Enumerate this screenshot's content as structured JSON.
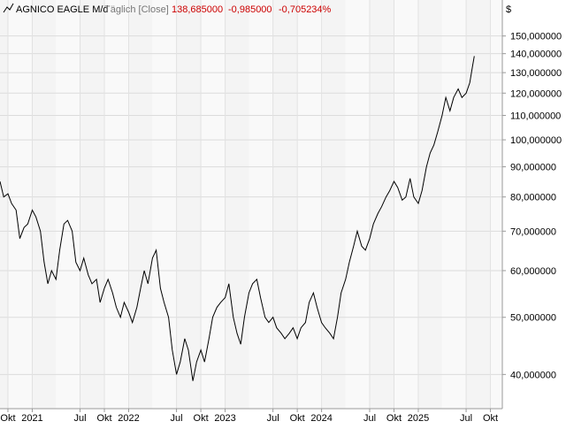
{
  "header": {
    "instrument": "AGNICO EAGLE M/d",
    "mode": "Täglich [Close]",
    "last": "138,685000",
    "change": "-0,985000",
    "change_pct": "-0,705234%",
    "currency": "$",
    "change_color": "#cc0000"
  },
  "chart_data": {
    "type": "line",
    "title": "",
    "xlabel": "",
    "ylabel": "",
    "y_scale": "log",
    "ylim": [
      35,
      160
    ],
    "xlim": [
      "2020-09-01",
      "2025-11-15"
    ],
    "grid": true,
    "y_ticks": [
      {
        "value": 40,
        "label": "40,000000"
      },
      {
        "value": 50,
        "label": "50,000000"
      },
      {
        "value": 60,
        "label": "60,000000"
      },
      {
        "value": 70,
        "label": "70,000000"
      },
      {
        "value": 80,
        "label": "80,000000"
      },
      {
        "value": 90,
        "label": "90,000000"
      },
      {
        "value": 100,
        "label": "100,000000"
      },
      {
        "value": 110,
        "label": "110,000000"
      },
      {
        "value": 120,
        "label": "120,000000"
      },
      {
        "value": 130,
        "label": "130,000000"
      },
      {
        "value": 140,
        "label": "140,000000"
      },
      {
        "value": 150,
        "label": "150,000000"
      }
    ],
    "x_ticks": [
      {
        "date": "2020-10-01",
        "label": "Okt"
      },
      {
        "date": "2021-01-01",
        "label": "2021"
      },
      {
        "date": "2021-07-01",
        "label": "Jul"
      },
      {
        "date": "2021-10-01",
        "label": "Okt"
      },
      {
        "date": "2022-01-01",
        "label": "2022"
      },
      {
        "date": "2022-07-01",
        "label": "Jul"
      },
      {
        "date": "2022-10-01",
        "label": "Okt"
      },
      {
        "date": "2023-01-01",
        "label": "2023"
      },
      {
        "date": "2023-07-01",
        "label": "Jul"
      },
      {
        "date": "2023-10-01",
        "label": "Okt"
      },
      {
        "date": "2024-01-01",
        "label": "2024"
      },
      {
        "date": "2024-07-01",
        "label": "Jul"
      },
      {
        "date": "2024-10-01",
        "label": "Okt"
      },
      {
        "date": "2025-01-01",
        "label": "2025"
      },
      {
        "date": "2025-07-01",
        "label": "Jul"
      },
      {
        "date": "2025-10-01",
        "label": "Okt"
      }
    ],
    "series": [
      {
        "color": "#000000",
        "points": [
          [
            "2020-09-01",
            85.0
          ],
          [
            "2020-09-15",
            80.0
          ],
          [
            "2020-10-01",
            81.0
          ],
          [
            "2020-10-15",
            78.0
          ],
          [
            "2020-11-01",
            76.0
          ],
          [
            "2020-11-15",
            68.0
          ],
          [
            "2020-12-01",
            71.0
          ],
          [
            "2020-12-15",
            72.0
          ],
          [
            "2021-01-01",
            76.0
          ],
          [
            "2021-01-15",
            74.0
          ],
          [
            "2021-02-01",
            70.0
          ],
          [
            "2021-02-15",
            62.0
          ],
          [
            "2021-03-01",
            57.0
          ],
          [
            "2021-03-15",
            60.0
          ],
          [
            "2021-04-01",
            58.0
          ],
          [
            "2021-04-15",
            65.0
          ],
          [
            "2021-05-01",
            72.0
          ],
          [
            "2021-05-15",
            73.0
          ],
          [
            "2021-06-01",
            70.0
          ],
          [
            "2021-06-15",
            62.0
          ],
          [
            "2021-07-01",
            60.0
          ],
          [
            "2021-07-15",
            63.0
          ],
          [
            "2021-08-01",
            59.0
          ],
          [
            "2021-08-15",
            57.0
          ],
          [
            "2021-09-01",
            58.0
          ],
          [
            "2021-09-15",
            53.0
          ],
          [
            "2021-10-01",
            56.0
          ],
          [
            "2021-10-15",
            58.0
          ],
          [
            "2021-11-01",
            55.0
          ],
          [
            "2021-11-15",
            52.0
          ],
          [
            "2021-12-01",
            50.0
          ],
          [
            "2021-12-15",
            53.0
          ],
          [
            "2022-01-01",
            51.0
          ],
          [
            "2022-01-15",
            49.0
          ],
          [
            "2022-02-01",
            52.0
          ],
          [
            "2022-02-15",
            56.0
          ],
          [
            "2022-03-01",
            60.0
          ],
          [
            "2022-03-15",
            57.0
          ],
          [
            "2022-04-01",
            63.0
          ],
          [
            "2022-04-15",
            65.0
          ],
          [
            "2022-05-01",
            56.0
          ],
          [
            "2022-05-15",
            53.0
          ],
          [
            "2022-06-01",
            50.0
          ],
          [
            "2022-06-15",
            44.0
          ],
          [
            "2022-07-01",
            40.0
          ],
          [
            "2022-07-15",
            42.0
          ],
          [
            "2022-08-01",
            46.0
          ],
          [
            "2022-08-15",
            44.0
          ],
          [
            "2022-09-01",
            39.0
          ],
          [
            "2022-09-15",
            42.0
          ],
          [
            "2022-10-01",
            44.0
          ],
          [
            "2022-10-15",
            42.0
          ],
          [
            "2022-11-01",
            46.0
          ],
          [
            "2022-11-15",
            50.0
          ],
          [
            "2022-12-01",
            52.0
          ],
          [
            "2022-12-15",
            53.0
          ],
          [
            "2023-01-01",
            54.0
          ],
          [
            "2023-01-15",
            57.0
          ],
          [
            "2023-02-01",
            50.0
          ],
          [
            "2023-02-15",
            47.0
          ],
          [
            "2023-03-01",
            45.0
          ],
          [
            "2023-03-15",
            50.0
          ],
          [
            "2023-04-01",
            55.0
          ],
          [
            "2023-04-15",
            57.0
          ],
          [
            "2023-05-01",
            58.0
          ],
          [
            "2023-05-15",
            54.0
          ],
          [
            "2023-06-01",
            50.0
          ],
          [
            "2023-06-15",
            49.0
          ],
          [
            "2023-07-01",
            50.0
          ],
          [
            "2023-07-15",
            48.0
          ],
          [
            "2023-08-01",
            47.0
          ],
          [
            "2023-08-15",
            46.0
          ],
          [
            "2023-09-01",
            47.0
          ],
          [
            "2023-09-15",
            48.0
          ],
          [
            "2023-10-01",
            46.0
          ],
          [
            "2023-10-15",
            48.0
          ],
          [
            "2023-11-01",
            49.0
          ],
          [
            "2023-11-15",
            53.0
          ],
          [
            "2023-12-01",
            55.0
          ],
          [
            "2023-12-15",
            52.0
          ],
          [
            "2024-01-01",
            49.0
          ],
          [
            "2024-01-15",
            48.0
          ],
          [
            "2024-02-01",
            47.0
          ],
          [
            "2024-02-15",
            46.0
          ],
          [
            "2024-03-01",
            50.0
          ],
          [
            "2024-03-15",
            55.0
          ],
          [
            "2024-04-01",
            58.0
          ],
          [
            "2024-04-15",
            62.0
          ],
          [
            "2024-05-01",
            66.0
          ],
          [
            "2024-05-15",
            70.0
          ],
          [
            "2024-06-01",
            66.0
          ],
          [
            "2024-06-15",
            65.0
          ],
          [
            "2024-07-01",
            68.0
          ],
          [
            "2024-07-15",
            72.0
          ],
          [
            "2024-08-01",
            75.0
          ],
          [
            "2024-08-15",
            77.0
          ],
          [
            "2024-09-01",
            80.0
          ],
          [
            "2024-09-15",
            82.0
          ],
          [
            "2024-10-01",
            85.0
          ],
          [
            "2024-10-15",
            83.0
          ],
          [
            "2024-11-01",
            79.0
          ],
          [
            "2024-11-15",
            80.0
          ],
          [
            "2024-12-01",
            86.0
          ],
          [
            "2024-12-15",
            80.0
          ],
          [
            "2025-01-01",
            78.0
          ],
          [
            "2025-01-15",
            82.0
          ],
          [
            "2025-02-01",
            90.0
          ],
          [
            "2025-02-15",
            95.0
          ],
          [
            "2025-03-01",
            98.0
          ],
          [
            "2025-03-15",
            103.0
          ],
          [
            "2025-04-01",
            110.0
          ],
          [
            "2025-04-15",
            118.0
          ],
          [
            "2025-05-01",
            112.0
          ],
          [
            "2025-05-15",
            118.0
          ],
          [
            "2025-06-01",
            122.0
          ],
          [
            "2025-06-15",
            118.0
          ],
          [
            "2025-07-01",
            120.0
          ],
          [
            "2025-07-15",
            125.0
          ],
          [
            "2025-07-25",
            133.0
          ],
          [
            "2025-08-01",
            138.685
          ]
        ]
      }
    ]
  }
}
